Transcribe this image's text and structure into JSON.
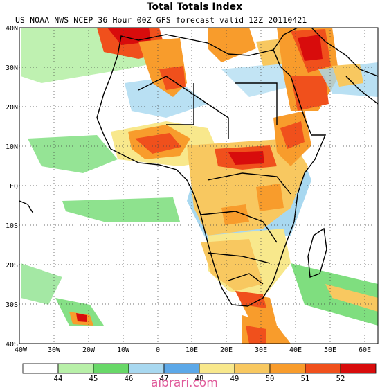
{
  "title": "Total Totals Index",
  "subtitle": "US NOAA NWS NCEP 36 Hour 00Z GFS forecast valid 12Z 20110421",
  "lat_labels": [
    "40N",
    "30N",
    "20N",
    "10N",
    "EQ",
    "10S",
    "20S",
    "30S",
    "40S"
  ],
  "lon_labels": [
    "40W",
    "30W",
    "20W",
    "10W",
    "0",
    "10E",
    "20E",
    "30E",
    "40E",
    "50E",
    "60E"
  ],
  "legend": {
    "colors": [
      "#ffffff",
      "#b8f0a8",
      "#68d868",
      "#a8d8f0",
      "#5ca8e8",
      "#f8e88c",
      "#f8c860",
      "#f89c2c",
      "#f0501c",
      "#d80c0c"
    ],
    "labels": [
      "44",
      "45",
      "46",
      "47",
      "48",
      "49",
      "50",
      "51",
      "52"
    ]
  },
  "watermark": "aibrari.com"
}
